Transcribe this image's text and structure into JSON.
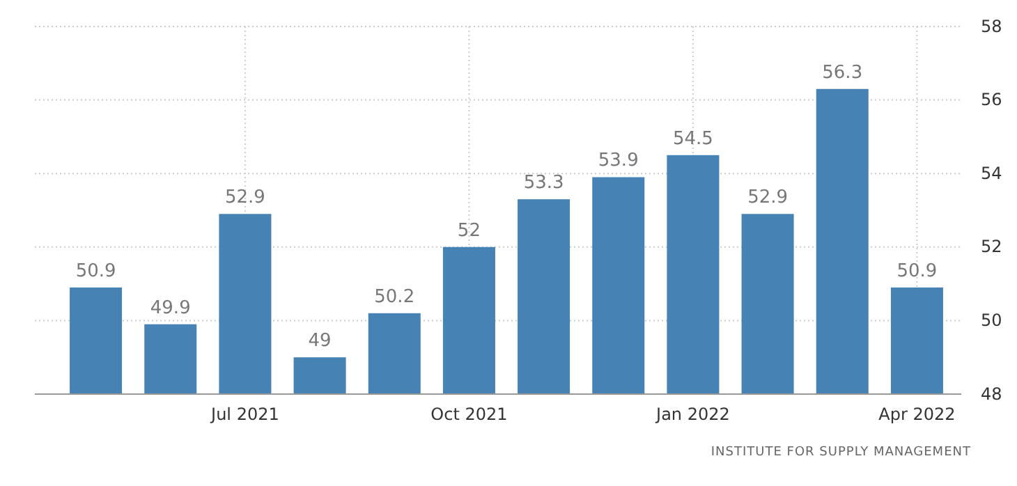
{
  "chart_data": {
    "type": "bar",
    "categories": [
      null,
      null,
      "Jul 2021",
      null,
      null,
      "Oct 2021",
      null,
      null,
      "Jan 2022",
      null,
      null,
      "Apr 2022"
    ],
    "values": [
      50.9,
      49.9,
      52.9,
      49,
      50.2,
      52,
      53.3,
      53.9,
      54.5,
      52.9,
      56.3,
      50.9
    ],
    "color": "#4682b4",
    "ylim": [
      48,
      58
    ],
    "yticks": [
      48,
      50,
      52,
      54,
      56,
      58
    ],
    "grid": true,
    "data_labels": true,
    "annotations": [
      "INSTITUTE FOR SUPPLY MANAGEMENT"
    ]
  }
}
